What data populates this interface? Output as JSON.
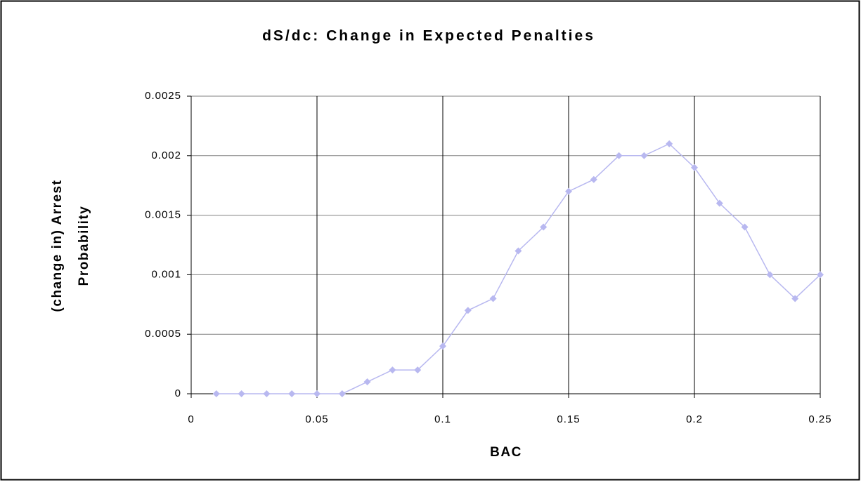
{
  "chart_data": {
    "type": "line",
    "title": "dS/dc: Change in Expected Penalties",
    "xlabel": "BAC",
    "ylabel": [
      "(change in) Arrest",
      "Probability"
    ],
    "x": [
      0.01,
      0.02,
      0.03,
      0.04,
      0.05,
      0.06,
      0.07,
      0.08,
      0.09,
      0.1,
      0.11,
      0.12,
      0.13,
      0.14,
      0.15,
      0.16,
      0.17,
      0.18,
      0.19,
      0.2,
      0.21,
      0.22,
      0.23,
      0.24,
      0.25
    ],
    "series": [
      {
        "color": "#b8b8f0",
        "values": [
          0,
          0,
          0,
          0,
          0,
          0,
          0.0001,
          0.0002,
          0.0002,
          0.0004,
          0.0007,
          0.0008,
          0.0012,
          0.0014,
          0.0017,
          0.0018,
          0.002,
          0.002,
          0.0021,
          0.0019,
          0.0016,
          0.0014,
          0.001,
          0.0008,
          0.001
        ]
      }
    ],
    "xlim": [
      0,
      0.25
    ],
    "xticks": [
      0,
      0.05,
      0.1,
      0.15,
      0.2,
      0.25
    ],
    "ylim": [
      0,
      0.0025
    ],
    "yticks": [
      0,
      0.0005,
      0.001,
      0.0015,
      0.002,
      0.0025
    ],
    "xgrid": true,
    "ygrid": true
  }
}
